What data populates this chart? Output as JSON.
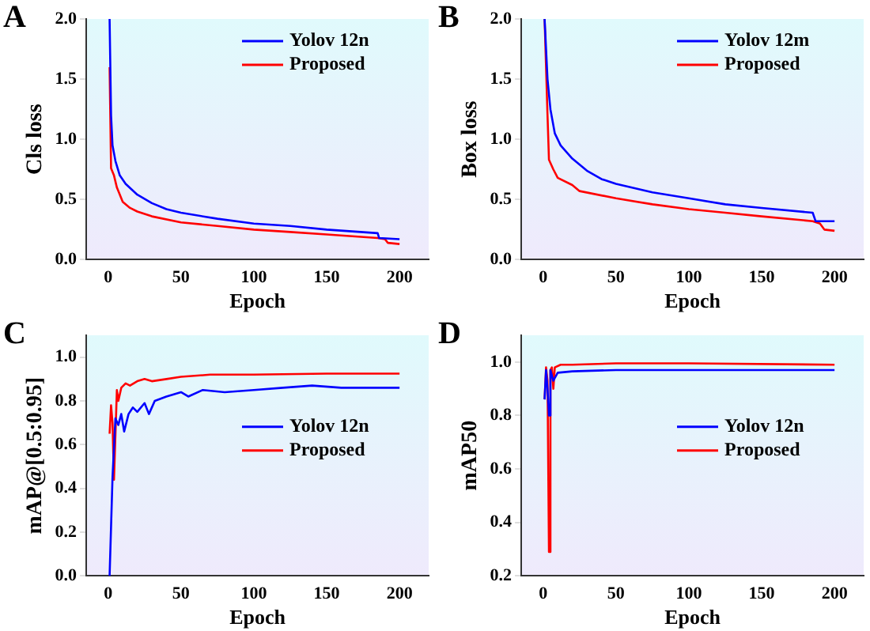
{
  "chart_data": [
    {
      "type": "line",
      "title": "A",
      "xlabel": "Epoch",
      "ylabel": "Cls loss",
      "xlim": [
        -15,
        220
      ],
      "xticks": [
        0,
        50,
        100,
        150,
        200
      ],
      "ylim": [
        0,
        2
      ],
      "yticks": [
        {
          "value": 0,
          "label": "0.0"
        },
        0.5,
        {
          "value": 1,
          "label": "1.0"
        },
        1.5,
        {
          "value": 2,
          "label": "2.0"
        }
      ],
      "legend": "top right",
      "grid": false,
      "series": [
        {
          "name": "Yolov 12n",
          "color": "#0000ff",
          "x": [
            1,
            2,
            3,
            5,
            8,
            12,
            20,
            30,
            40,
            50,
            75,
            100,
            125,
            150,
            185,
            186,
            200
          ],
          "values": [
            2.0,
            1.2,
            0.95,
            0.82,
            0.7,
            0.63,
            0.54,
            0.47,
            0.42,
            0.39,
            0.34,
            0.3,
            0.28,
            0.25,
            0.22,
            0.18,
            0.17
          ]
        },
        {
          "name": "Proposed",
          "color": "#ff0000",
          "x": [
            1,
            2,
            4,
            6,
            10,
            15,
            20,
            30,
            50,
            75,
            100,
            125,
            150,
            185,
            190,
            192,
            200
          ],
          "values": [
            1.6,
            0.76,
            0.7,
            0.6,
            0.48,
            0.43,
            0.4,
            0.36,
            0.31,
            0.28,
            0.25,
            0.23,
            0.21,
            0.18,
            0.17,
            0.14,
            0.13
          ]
        }
      ]
    },
    {
      "type": "line",
      "title": "B",
      "xlabel": "Epoch",
      "ylabel": "Box loss",
      "xlim": [
        -15,
        220
      ],
      "xticks": [
        0,
        50,
        100,
        150,
        200
      ],
      "ylim": [
        0,
        2
      ],
      "yticks": [
        {
          "value": 0,
          "label": "0.0"
        },
        0.5,
        {
          "value": 1,
          "label": "1.0"
        },
        1.5,
        {
          "value": 2,
          "label": "2.0"
        }
      ],
      "legend": "top right",
      "grid": false,
      "series": [
        {
          "name": "Yolov 12m",
          "color": "#0000ff",
          "x": [
            1,
            3,
            5,
            8,
            12,
            20,
            30,
            40,
            50,
            75,
            100,
            125,
            150,
            185,
            187,
            200
          ],
          "values": [
            2.0,
            1.5,
            1.25,
            1.05,
            0.95,
            0.84,
            0.74,
            0.67,
            0.63,
            0.56,
            0.51,
            0.46,
            0.43,
            0.39,
            0.32,
            0.32
          ]
        },
        {
          "name": "Proposed",
          "color": "#ff0000",
          "x": [
            1,
            3,
            4,
            7,
            10,
            20,
            25,
            50,
            75,
            100,
            125,
            150,
            185,
            190,
            193,
            200
          ],
          "values": [
            2.0,
            1.2,
            0.83,
            0.75,
            0.68,
            0.62,
            0.57,
            0.51,
            0.46,
            0.42,
            0.39,
            0.36,
            0.32,
            0.3,
            0.25,
            0.24
          ]
        }
      ]
    },
    {
      "type": "line",
      "title": "C",
      "xlabel": "Epoch",
      "ylabel": "mAP@[0.5:0.95]",
      "xlim": [
        -15,
        220
      ],
      "xticks": [
        0,
        50,
        100,
        150,
        200
      ],
      "ylim": [
        0,
        1.1
      ],
      "yticks": [
        {
          "value": 0,
          "label": "0.0"
        },
        0.2,
        0.4,
        0.6,
        0.8,
        {
          "value": 1,
          "label": "1.0"
        }
      ],
      "legend": "right",
      "grid": false,
      "series": [
        {
          "name": "Yolov 12n",
          "color": "#0000ff",
          "x": [
            1,
            3,
            5,
            7,
            9,
            11,
            14,
            17,
            20,
            25,
            28,
            32,
            40,
            50,
            55,
            65,
            80,
            100,
            120,
            140,
            160,
            200
          ],
          "values": [
            0.0,
            0.45,
            0.72,
            0.69,
            0.74,
            0.66,
            0.74,
            0.77,
            0.75,
            0.79,
            0.74,
            0.8,
            0.82,
            0.84,
            0.82,
            0.85,
            0.84,
            0.85,
            0.86,
            0.87,
            0.86,
            0.86
          ]
        },
        {
          "name": "Proposed",
          "color": "#ff0000",
          "x": [
            1,
            2,
            3,
            4,
            6,
            7,
            9,
            12,
            15,
            20,
            25,
            30,
            40,
            50,
            70,
            100,
            150,
            200
          ],
          "values": [
            0.65,
            0.78,
            0.7,
            0.44,
            0.85,
            0.8,
            0.86,
            0.88,
            0.87,
            0.89,
            0.9,
            0.89,
            0.9,
            0.91,
            0.92,
            0.92,
            0.925,
            0.925
          ]
        }
      ]
    },
    {
      "type": "line",
      "title": "D",
      "xlabel": "Epoch",
      "ylabel": "mAP50",
      "xlim": [
        -15,
        220
      ],
      "xticks": [
        0,
        50,
        100,
        150,
        200
      ],
      "ylim": [
        0.2,
        1.1
      ],
      "yticks": [
        0.2,
        0.4,
        0.6,
        0.8,
        {
          "value": 1,
          "label": "1.0"
        }
      ],
      "legend": "right",
      "grid": false,
      "series": [
        {
          "name": "Yolov 12n",
          "color": "#0000ff",
          "x": [
            1,
            2,
            3,
            4,
            5,
            7,
            10,
            20,
            50,
            100,
            200
          ],
          "values": [
            0.86,
            0.97,
            0.9,
            0.8,
            0.97,
            0.93,
            0.96,
            0.965,
            0.97,
            0.97,
            0.97
          ]
        },
        {
          "name": "Proposed",
          "color": "#ff0000",
          "x": [
            1,
            2,
            3,
            4,
            5,
            6,
            7,
            8,
            12,
            20,
            50,
            100,
            200
          ],
          "values": [
            0.86,
            0.98,
            0.93,
            0.29,
            0.97,
            0.98,
            0.9,
            0.98,
            0.99,
            0.99,
            0.995,
            0.995,
            0.99
          ]
        }
      ]
    }
  ]
}
